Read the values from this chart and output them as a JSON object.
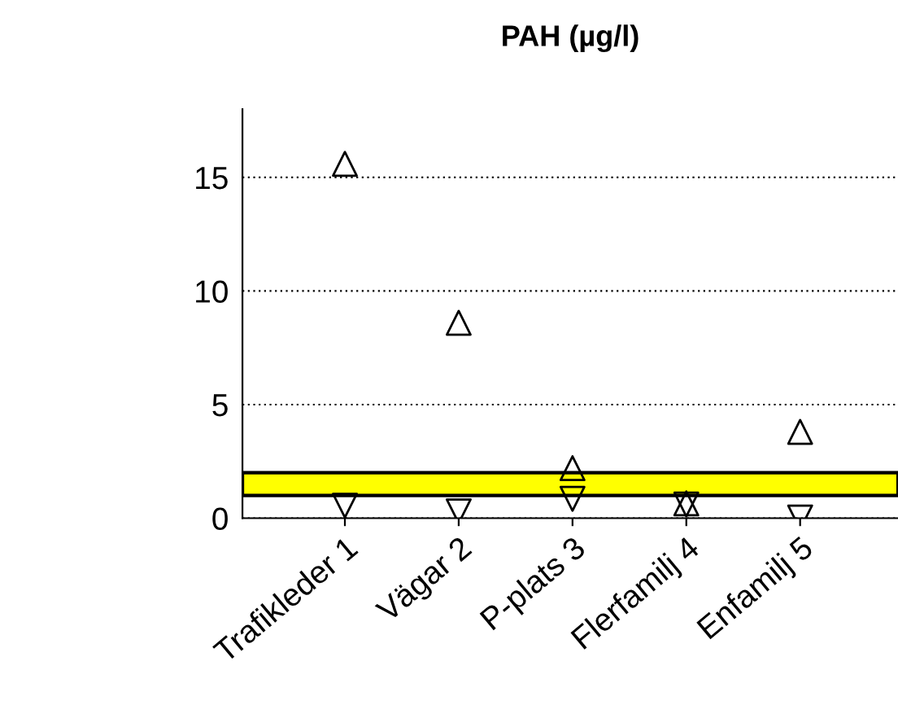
{
  "chart_data": {
    "type": "scatter",
    "title": "PAH (µg/l)",
    "categories": [
      "Trafikleder 1",
      "Vägar 2",
      "P-plats 3",
      "Flerfamilj 4",
      "Enfamilj 5"
    ],
    "series": [
      {
        "color": "#000000",
        "marker": "triangle",
        "values": [
          15.6,
          8.6,
          2.2,
          0.65,
          3.8
        ]
      },
      {
        "color": "#000000",
        "marker": "triangle_down",
        "values": [
          0.55,
          0.3,
          0.85,
          0.6,
          0.03
        ]
      }
    ],
    "bands": [
      {
        "axis": "y",
        "from": 1,
        "to": 2,
        "color": "#ffff00"
      }
    ],
    "ylim": [
      0,
      18
    ],
    "yticks": [
      0,
      5,
      10,
      15
    ],
    "grid": "y",
    "legend": false
  }
}
